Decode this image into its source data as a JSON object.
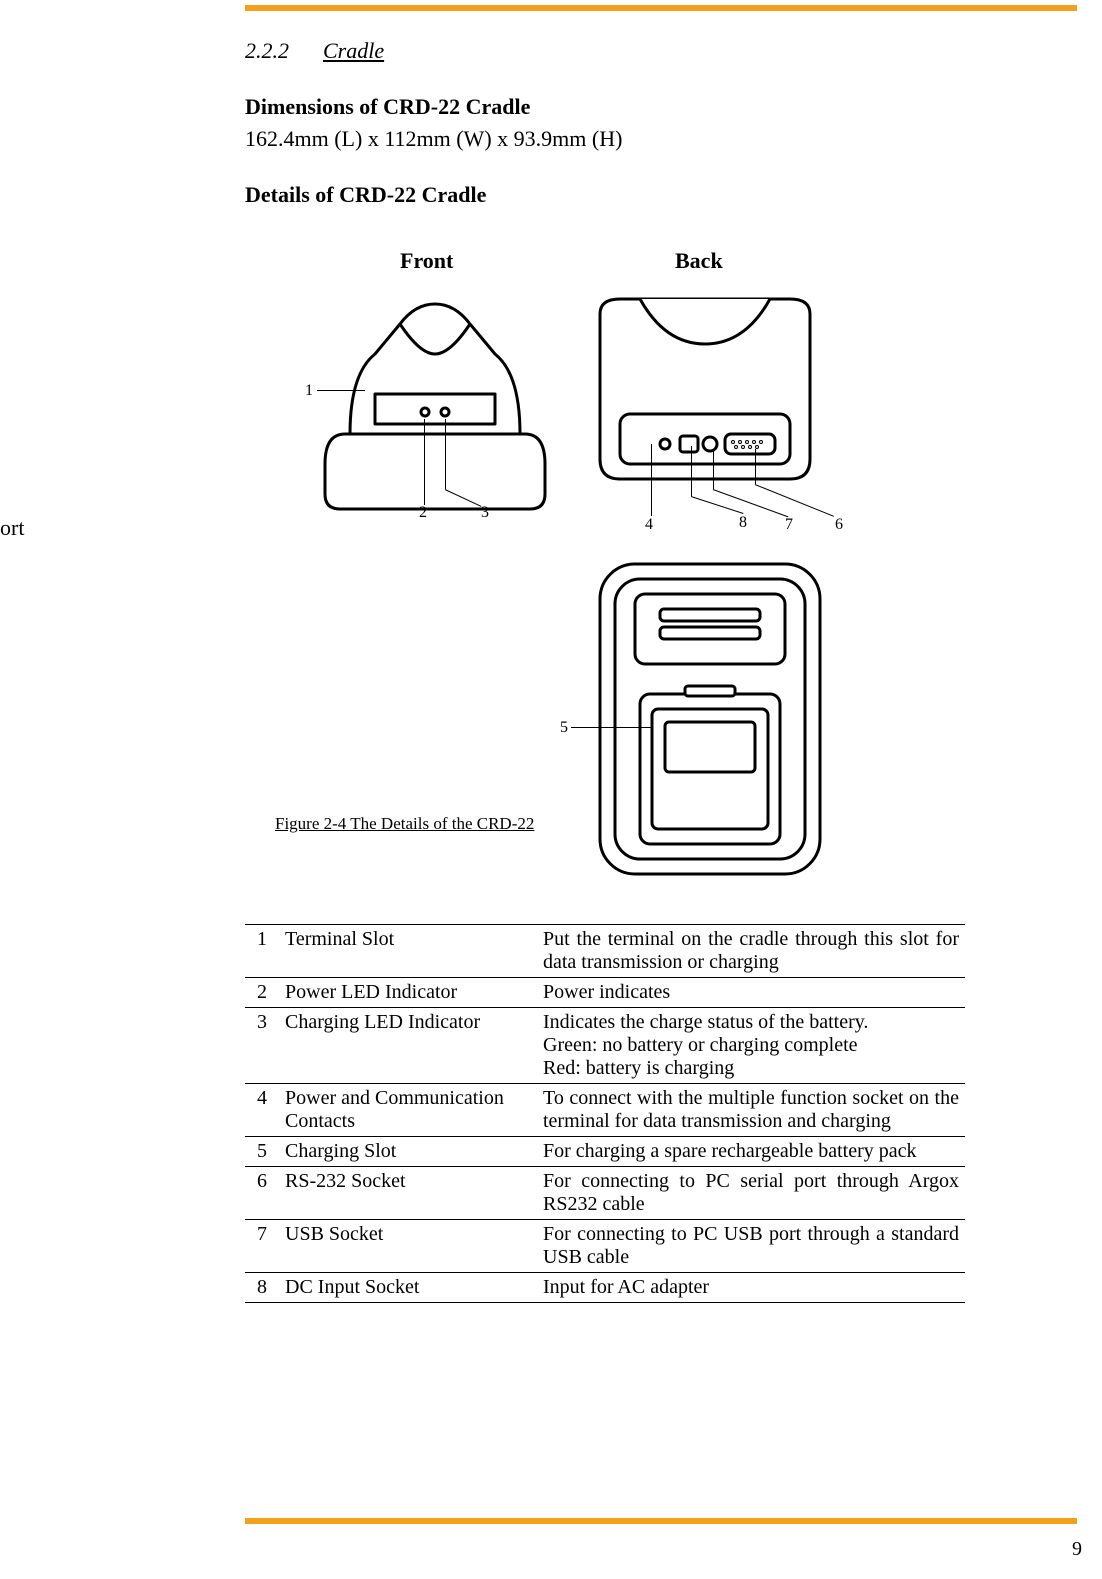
{
  "section": {
    "number": "2.2.2",
    "title": "Cradle"
  },
  "dimensions": {
    "heading": "Dimensions of CRD-22 Cradle",
    "text": "162.4mm (L) x 112mm (W) x 93.9mm (H)"
  },
  "details_heading": "Details of CRD-22 Cradle",
  "figure": {
    "front_label": "Front",
    "back_label": "Back",
    "caption": "Figure 2-4 The Details of the CRD-22",
    "callouts": {
      "one": "1",
      "two": "2",
      "three": "3",
      "four": "4",
      "five": "5",
      "six": "6",
      "seven": "7",
      "eight": "8"
    }
  },
  "side_cut_text": "ort",
  "table": {
    "rows": [
      {
        "num": "1",
        "name": "Terminal Slot",
        "desc": "Put the terminal on the cradle through this slot for data transmission or charging"
      },
      {
        "num": "2",
        "name": "Power LED Indicator",
        "desc": "Power indicates"
      },
      {
        "num": "3",
        "name": "Charging LED Indicator",
        "desc": "Indicates the charge status of the battery.\nGreen: no battery or charging complete\nRed: battery is charging"
      },
      {
        "num": "4",
        "name": "Power and Communication Contacts",
        "desc": "To connect with the multiple function socket on the terminal for data transmission and charging"
      },
      {
        "num": "5",
        "name": "Charging Slot",
        "desc": "For charging a spare rechargeable battery pack"
      },
      {
        "num": "6",
        "name": "RS-232  Socket",
        "desc": "For connecting to PC serial port through Argox RS232 cable"
      },
      {
        "num": "7",
        "name": "USB Socket",
        "desc": "For connecting to PC USB port through a standard USB cable"
      },
      {
        "num": "8",
        "name": "DC Input Socket",
        "desc": "Input for AC adapter"
      }
    ]
  },
  "page_number": "9",
  "colors": {
    "rule": "#f3a01b"
  }
}
